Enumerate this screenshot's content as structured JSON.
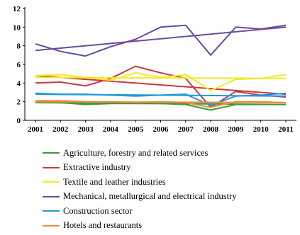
{
  "chart_data": {
    "type": "line",
    "title": "",
    "xlabel": "",
    "ylabel": "",
    "x": [
      "2001",
      "2002",
      "2003",
      "2004",
      "2005",
      "2006",
      "2007",
      "2008",
      "2009",
      "2010",
      "2011"
    ],
    "ylim": [
      0,
      12
    ],
    "yticks": [
      "0",
      "2",
      "4",
      "6",
      "8",
      "10",
      "12"
    ],
    "grid": false,
    "legend_position": "bottom",
    "series": [
      {
        "name": "Agriculture, forestry and related services",
        "color": "#3a9b3a",
        "values": [
          1.9,
          1.9,
          1.7,
          1.8,
          1.8,
          1.8,
          1.7,
          1.1,
          1.7,
          1.7,
          1.7
        ],
        "trend": [
          1.9,
          1.7
        ]
      },
      {
        "name": "Extractive industry",
        "color": "#c83c3c",
        "values": [
          4.0,
          4.1,
          3.7,
          4.5,
          5.8,
          5.1,
          4.5,
          1.4,
          3.1,
          2.7,
          2.5
        ],
        "trend": [
          4.8,
          2.8
        ]
      },
      {
        "name": "Textile and leather industries",
        "color": "#f2ea28",
        "values": [
          4.8,
          4.9,
          4.6,
          4.3,
          5.1,
          4.6,
          4.9,
          3.2,
          4.4,
          4.5,
          4.9
        ],
        "trend": [
          4.6,
          4.5
        ]
      },
      {
        "name": "Mechanical, metallurgical and electrical industry",
        "color": "#6a4c9c",
        "values": [
          8.2,
          7.4,
          6.9,
          7.9,
          8.7,
          10.0,
          10.2,
          7.0,
          10.0,
          9.8,
          10.2
        ],
        "trend": [
          7.5,
          10.0
        ]
      },
      {
        "name": "Construction sector",
        "color": "#1e9ad8",
        "values": [
          2.9,
          2.8,
          2.8,
          2.7,
          2.6,
          2.7,
          2.8,
          1.6,
          2.6,
          2.7,
          2.9
        ],
        "trend": [
          2.8,
          2.6
        ]
      },
      {
        "name": "Hotels and restaurants",
        "color": "#ef8a3c",
        "values": [
          2.1,
          2.1,
          2.0,
          2.0,
          1.9,
          2.0,
          1.9,
          1.4,
          2.0,
          2.0,
          1.9
        ],
        "trend": [
          2.0,
          1.9
        ]
      }
    ]
  }
}
